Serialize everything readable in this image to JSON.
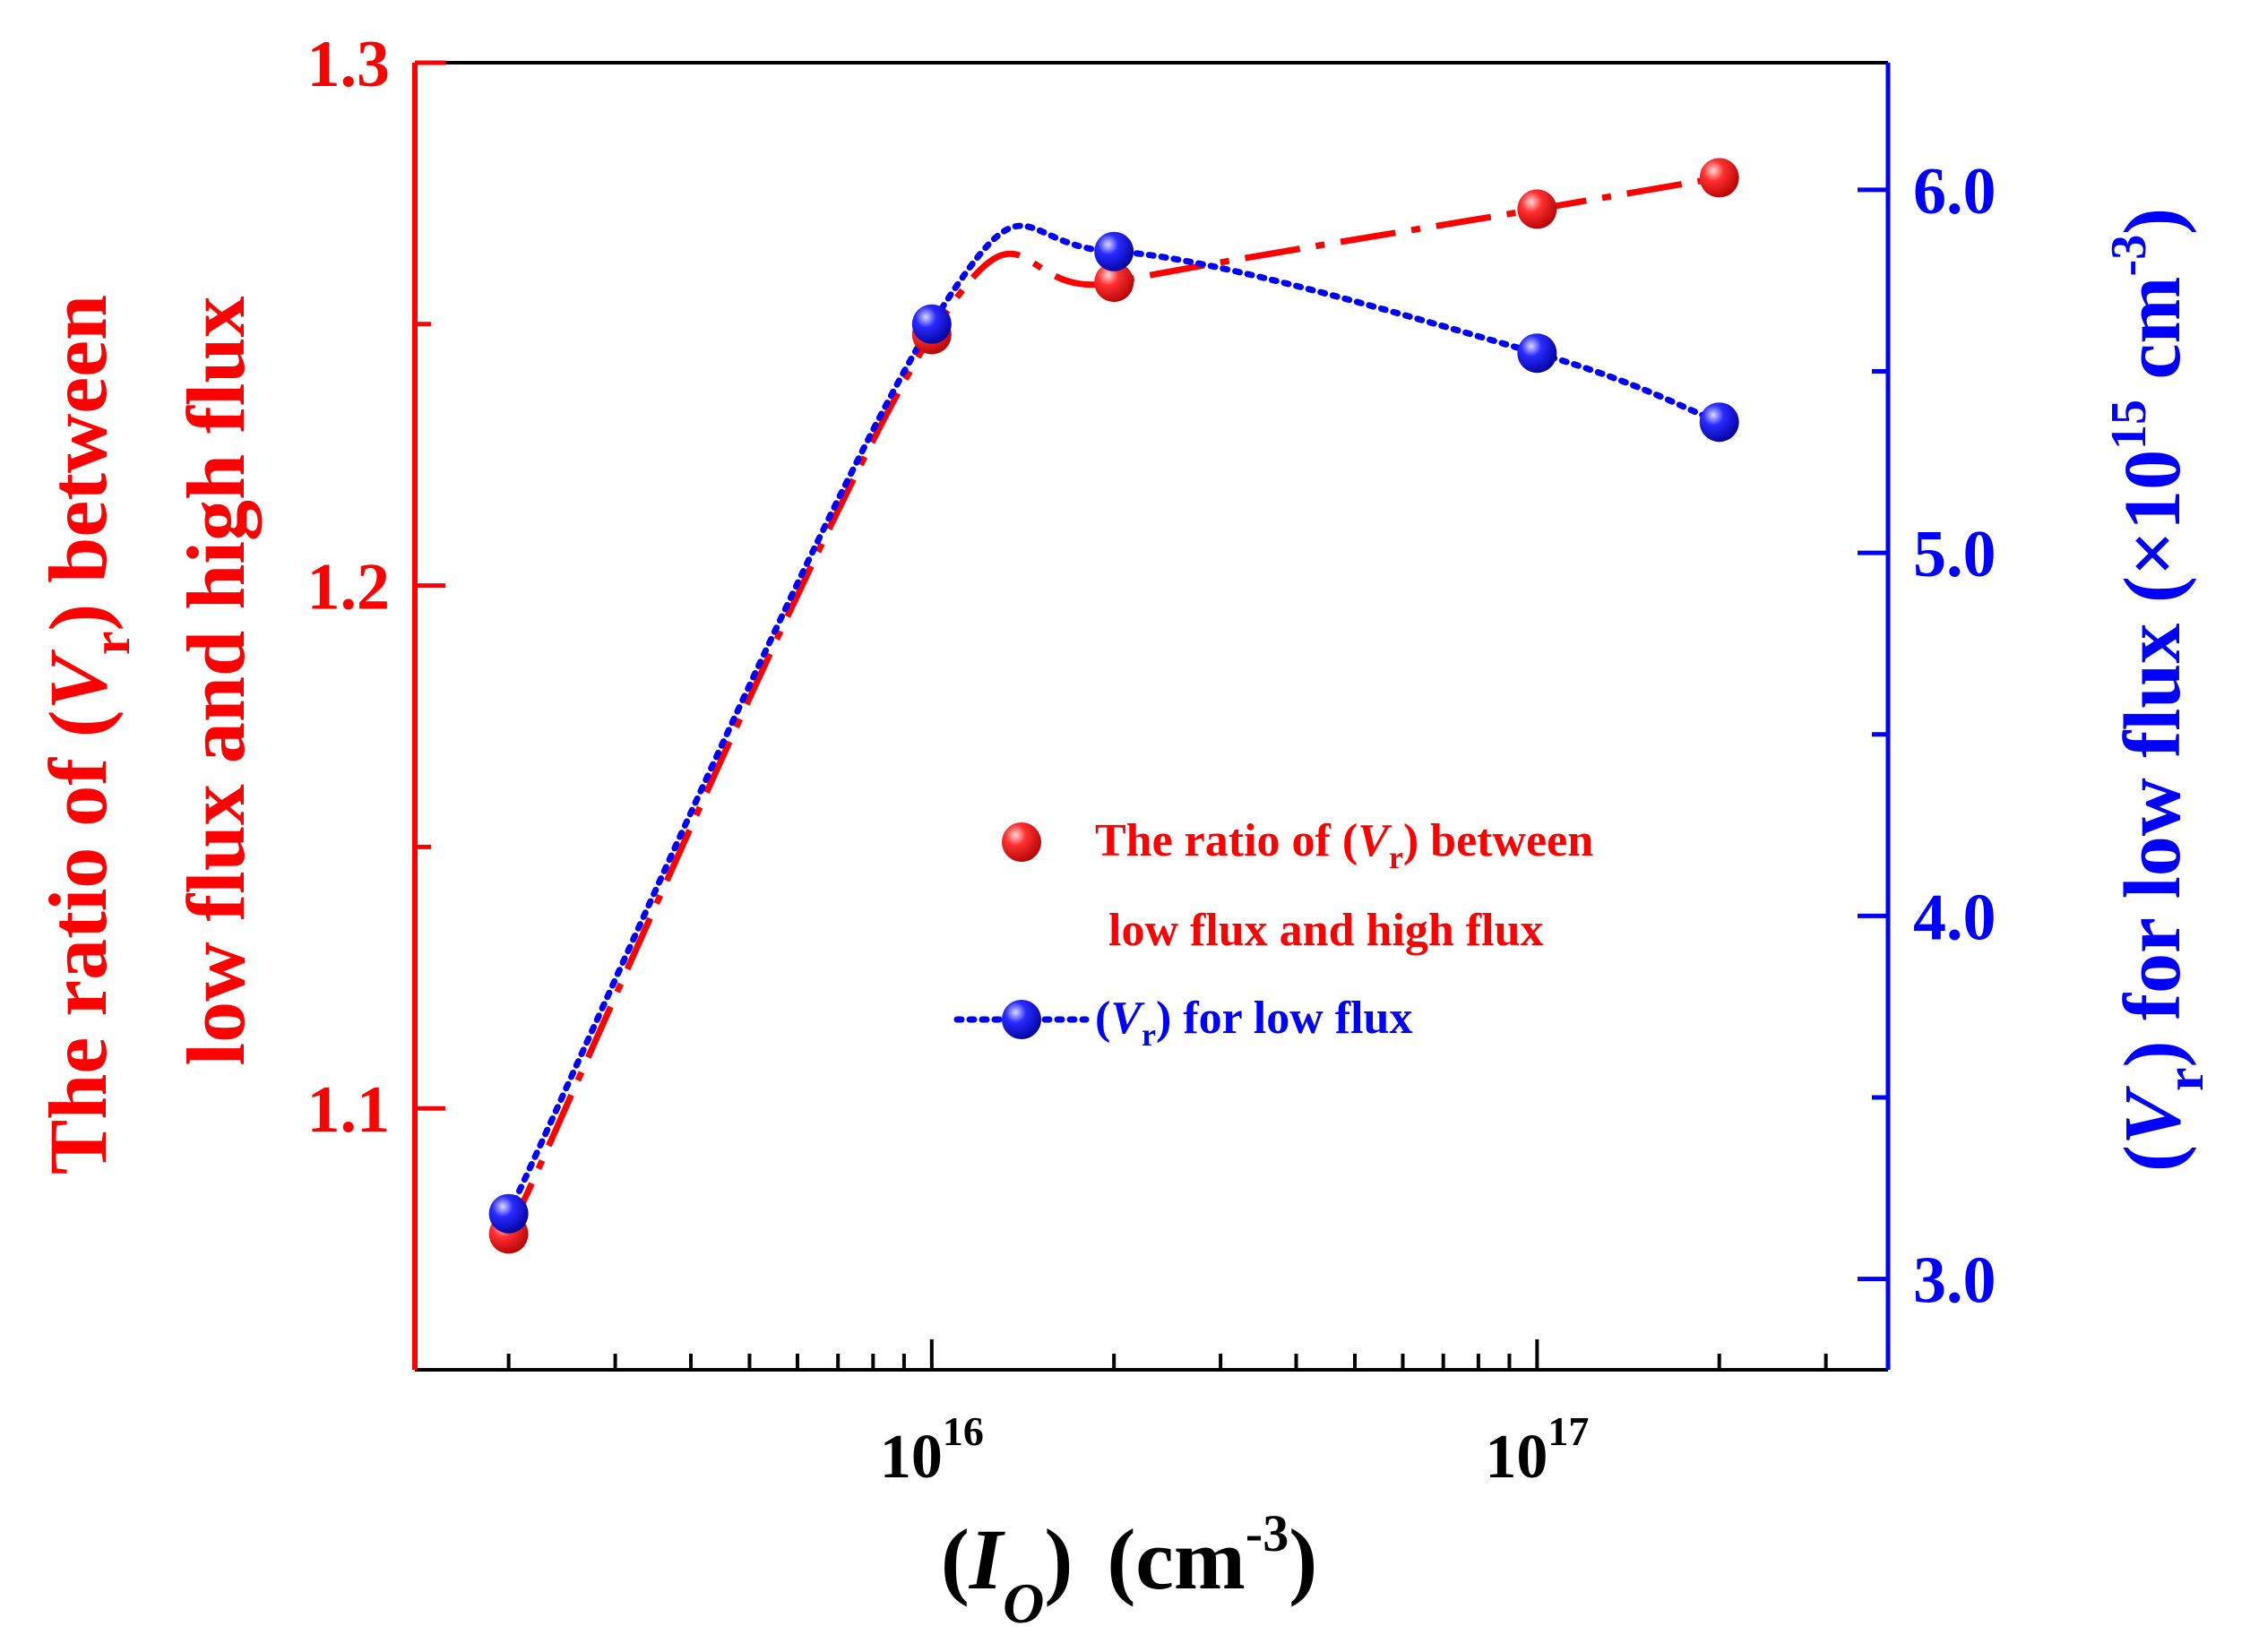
{
  "colors": {
    "red": "#ff0000",
    "blue": "#0000ff",
    "black": "#000000"
  },
  "chart_data": {
    "type": "line",
    "x_scale": "log",
    "x": [
      2000000000000000.0,
      1e+16,
      2e+16,
      1e+17,
      2e+17
    ],
    "xlim": [
      1400000000000000.0,
      3.8e+17
    ],
    "x_tick_base": "10",
    "x_major_ticks": [
      {
        "value": 1e+16,
        "exp": "16"
      },
      {
        "value": 1e+17,
        "exp": "17"
      }
    ],
    "x_minor_ticks": [
      2000000000000000.0,
      3000000000000000.0,
      4000000000000000.0,
      5000000000000000.0,
      6000000000000000.0,
      7000000000000000.0,
      8000000000000000.0,
      9000000000000000.0,
      2e+16,
      3e+16,
      4e+16,
      5e+16,
      6e+16,
      7e+16,
      8e+16,
      9e+16,
      2e+17,
      3e+17
    ],
    "xlabel": {
      "open": "(",
      "var": "I",
      "sub": "O",
      "close": ")",
      "unit": "(cm",
      "unit_exp": "-3",
      "unit_close": ")"
    },
    "left_axis": {
      "ylim": [
        1.05,
        1.3
      ],
      "major_ticks": [
        {
          "value": 1.1,
          "label": "1.1"
        },
        {
          "value": 1.2,
          "label": "1.2"
        },
        {
          "value": 1.3,
          "label": "1.3"
        }
      ],
      "minor_ticks": [
        1.15,
        1.25
      ],
      "label_line1": {
        "pre": "The ratio of (",
        "var": "V",
        "sub": "r",
        "post": ")  between"
      },
      "label_line2": "low flux and high flux"
    },
    "right_axis": {
      "ylim": [
        2.75,
        6.35
      ],
      "major_ticks": [
        {
          "value": 3.0,
          "label": "3.0"
        },
        {
          "value": 4.0,
          "label": "4.0"
        },
        {
          "value": 5.0,
          "label": "5.0"
        },
        {
          "value": 6.0,
          "label": "6.0"
        }
      ],
      "minor_ticks": [
        3.5,
        4.5,
        5.5
      ],
      "label": {
        "open": "(",
        "var": "V",
        "sub": "r",
        "mid": ") for low flux (×10",
        "exp1": "15",
        "unit": " cm",
        "exp2": "-3",
        "close": ")"
      }
    },
    "series": [
      {
        "name": "The ratio of (Vr) between low flux and high flux",
        "axis": "left",
        "color": "#ff0000",
        "line_style": "dash-dot",
        "values": [
          1.076,
          1.248,
          1.258,
          1.272,
          1.278
        ]
      },
      {
        "name": "(Vr) for low flux",
        "axis": "right",
        "color": "#0000ff",
        "line_style": "dotted",
        "values": [
          3.18,
          5.63,
          5.83,
          5.55,
          5.36
        ]
      }
    ],
    "legend": {
      "position": "center-right",
      "red_line1": {
        "pre": "The ratio of (",
        "var": "V",
        "sub": "r",
        "post": ")  between"
      },
      "red_line2": "low flux and high flux",
      "blue": {
        "open": "(",
        "var": "V",
        "sub": "r",
        "post": ") for low flux"
      }
    }
  }
}
